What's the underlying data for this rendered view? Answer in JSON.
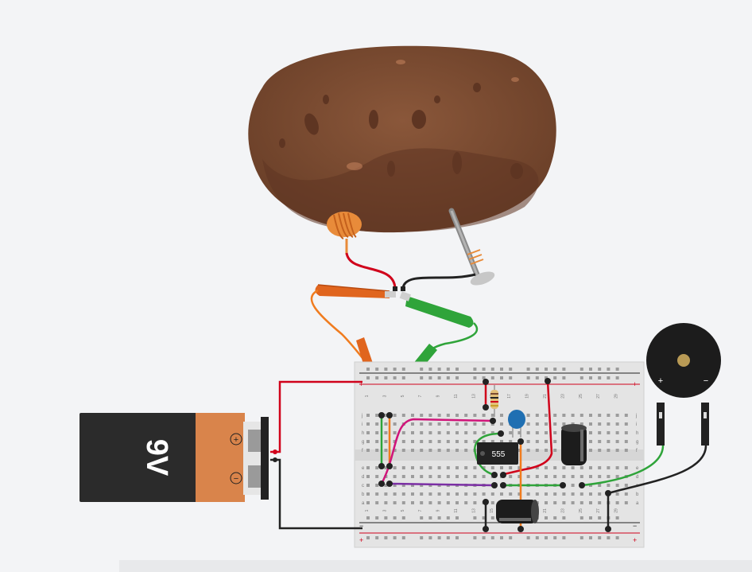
{
  "battery": {
    "label": "9V",
    "plus": "+",
    "minus": "−"
  },
  "chip": {
    "label": "555"
  },
  "buzzer": {
    "plus": "+",
    "minus": "−"
  },
  "breadboard": {
    "rail_plus": "+",
    "rail_minus": "−",
    "col_numbers": [
      "1",
      "3",
      "5",
      "7",
      "9",
      "11",
      "13",
      "15",
      "17",
      "19",
      "21",
      "23",
      "25",
      "27",
      "29"
    ],
    "row_letters_top": [
      "j",
      "i",
      "h",
      "g",
      "f"
    ],
    "row_letters_bottom": [
      "e",
      "d",
      "c",
      "b",
      "a"
    ]
  },
  "colors": {
    "background": "#f3f4f6",
    "potato": "#7a4b32",
    "potato_dark": "#5e3522",
    "board": "#e6e6e6",
    "wire_red": "#d0021b",
    "wire_black": "#222222",
    "wire_green": "#2fa43a",
    "wire_orange": "#f07c1f",
    "wire_magenta": "#d0157a",
    "wire_purple": "#7b2fa4",
    "battery_body": "#2b2b2b",
    "battery_cap": "#d9844b"
  }
}
